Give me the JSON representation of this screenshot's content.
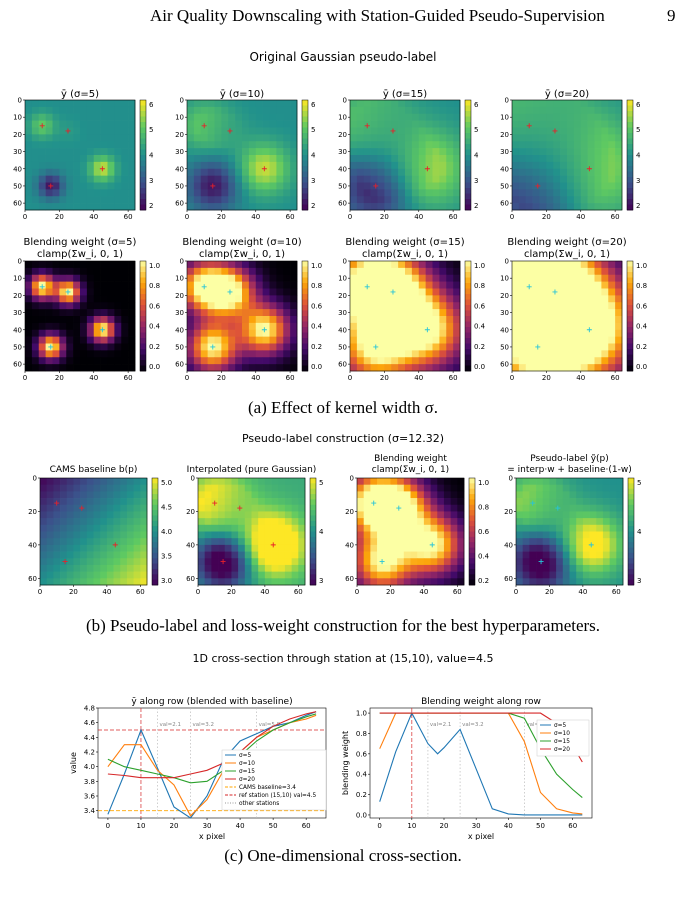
{
  "header": {
    "title": "Air Quality Downscaling with Station-Guided Pseudo-Supervision",
    "page": "9"
  },
  "colors": {
    "station_red": "#e8202a",
    "station_cyan": "#27c4d8"
  },
  "stations": [
    {
      "x": 10,
      "y": 15
    },
    {
      "x": 25,
      "y": 18
    },
    {
      "x": 45,
      "y": 40
    },
    {
      "x": 15,
      "y": 50
    }
  ],
  "figA": {
    "suptitle": "Original Gaussian pseudo-label",
    "caption": "(a) Effect of kernel width σ.",
    "top_titles": [
      "ȳ  (σ=5)",
      "ȳ  (σ=10)",
      "ȳ  (σ=15)",
      "ȳ  (σ=20)"
    ],
    "bottom_titles": [
      [
        "Blending weight  (σ=5)",
        "clamp(Σw_i, 0, 1)"
      ],
      [
        "Blending weight  (σ=10)",
        "clamp(Σw_i, 0, 1)"
      ],
      [
        "Blending weight  (σ=15)",
        "clamp(Σw_i, 0, 1)"
      ],
      [
        "Blending weight  (σ=20)",
        "clamp(Σw_i, 0, 1)"
      ]
    ],
    "sigmas": [
      5,
      10,
      15,
      20
    ],
    "yticks": [
      "0",
      "10",
      "20",
      "30",
      "40",
      "50",
      "60"
    ],
    "xticks": [
      "0",
      "20",
      "40",
      "60"
    ],
    "cbar_top": [
      "6",
      "5",
      "4",
      "3",
      "2"
    ],
    "cbar_bottom": [
      "1.0",
      "0.8",
      "0.6",
      "0.4",
      "0.2",
      "0.0"
    ]
  },
  "figB": {
    "suptitle": "Pseudo-label construction  (σ=12.32)",
    "caption": "(b) Pseudo-label and loss-weight construction for the best hyperparameters.",
    "titles": [
      [
        "CAMS baseline  b(p)"
      ],
      [
        "Interpolated (pure Gaussian)"
      ],
      [
        "Blending weight",
        "clamp(Σw_i, 0, 1)"
      ],
      [
        "Pseudo-label  ỹ(p)",
        "= interp·w + baseline·(1-w)"
      ]
    ],
    "yticks": [
      "0",
      "20",
      "40",
      "60"
    ],
    "xticks": [
      "0",
      "20",
      "40",
      "60"
    ],
    "cbars": [
      [
        "5.0",
        "4.5",
        "4.0",
        "3.5",
        "3.0"
      ],
      [
        "5",
        "4",
        "3"
      ],
      [
        "1.0",
        "0.8",
        "0.6",
        "0.4",
        "0.2"
      ],
      [
        "5",
        "4",
        "3"
      ]
    ]
  },
  "figC": {
    "suptitle": "1D cross-section through station at (15,10), value=4.5",
    "caption": "(c) One-dimensional cross-section.",
    "left": {
      "title": "ȳ along row (blended with baseline)",
      "xlabel": "x pixel",
      "ylabel": "value",
      "ylim": [
        3.3,
        4.8
      ],
      "yticks": [
        "3.4",
        "3.6",
        "3.8",
        "4.0",
        "4.2",
        "4.4",
        "4.6",
        "4.8"
      ],
      "xticks": [
        "0",
        "10",
        "20",
        "30",
        "40",
        "50",
        "60"
      ],
      "annotations": [
        "val=2.1",
        "val=3.2",
        "val=5.8"
      ],
      "legend": [
        "σ=5",
        "σ=10",
        "σ=15",
        "σ=20",
        "CAMS baseline=3.4",
        "ref station (15,10) val=4.5",
        "other stations"
      ]
    },
    "right": {
      "title": "Blending weight along row",
      "xlabel": "x pixel",
      "ylabel": "blending weight",
      "ylim": [
        0,
        1.05
      ],
      "yticks": [
        "0.0",
        "0.2",
        "0.4",
        "0.6",
        "0.8",
        "1.0"
      ],
      "xticks": [
        "0",
        "10",
        "20",
        "30",
        "40",
        "50",
        "60"
      ],
      "annotations": [
        "val=2.1",
        "val=3.2",
        "val=5.8"
      ],
      "legend": [
        "σ=5",
        "σ=10",
        "σ=15",
        "σ=20"
      ]
    }
  },
  "chart_data": [
    {
      "type": "line",
      "title": "ȳ along row (blended with baseline)",
      "xlabel": "x pixel",
      "ylabel": "value",
      "xlim": [
        -3,
        66
      ],
      "ylim": [
        3.3,
        4.8
      ],
      "x": [
        0,
        5,
        10,
        15,
        20,
        25,
        30,
        35,
        40,
        45,
        50,
        55,
        60,
        63
      ],
      "series": [
        {
          "name": "σ=5",
          "color": "#1f77b4",
          "values": [
            3.35,
            3.9,
            4.5,
            3.98,
            3.45,
            3.3,
            3.6,
            4.1,
            4.35,
            4.45,
            4.55,
            4.6,
            4.7,
            4.75
          ]
        },
        {
          "name": "σ=10",
          "color": "#ff7f0e",
          "values": [
            4.0,
            4.3,
            4.3,
            3.95,
            3.75,
            3.33,
            3.55,
            3.95,
            4.2,
            4.4,
            4.5,
            4.6,
            4.65,
            4.7
          ]
        },
        {
          "name": "σ=15",
          "color": "#2ca02c",
          "values": [
            4.1,
            4.0,
            3.95,
            3.9,
            3.85,
            3.78,
            3.8,
            3.95,
            4.15,
            4.35,
            4.5,
            4.6,
            4.68,
            4.72
          ]
        },
        {
          "name": "σ=20",
          "color": "#d62728",
          "values": [
            3.9,
            3.88,
            3.85,
            3.85,
            3.85,
            3.9,
            3.95,
            4.05,
            4.2,
            4.4,
            4.55,
            4.65,
            4.72,
            4.75
          ]
        }
      ],
      "hlines": [
        {
          "name": "CAMS baseline=3.4",
          "y": 3.4,
          "color": "#ffa500"
        },
        {
          "name": "ref station (15,10) val=4.5",
          "y": 4.5,
          "color": "#d62728"
        }
      ],
      "vlines": [
        {
          "x": 10,
          "color": "#d62728"
        },
        {
          "x": 15,
          "color": "#bbbbbb"
        },
        {
          "x": 25,
          "color": "#bbbbbb"
        },
        {
          "x": 45,
          "color": "#bbbbbb"
        }
      ]
    },
    {
      "type": "line",
      "title": "Blending weight along row",
      "xlabel": "x pixel",
      "ylabel": "blending weight",
      "xlim": [
        -3,
        66
      ],
      "ylim": [
        -0.03,
        1.05
      ],
      "x": [
        0,
        5,
        10,
        15,
        18,
        20,
        25,
        30,
        35,
        40,
        45,
        50,
        55,
        60,
        63
      ],
      "series": [
        {
          "name": "σ=5",
          "color": "#1f77b4",
          "values": [
            0.13,
            0.62,
            1.0,
            0.7,
            0.6,
            0.66,
            0.84,
            0.45,
            0.06,
            0.01,
            0.0,
            0.0,
            0.0,
            0.0,
            0.0
          ]
        },
        {
          "name": "σ=10",
          "color": "#ff7f0e",
          "values": [
            0.65,
            1.0,
            1.0,
            1.0,
            1.0,
            1.0,
            1.0,
            1.0,
            1.0,
            1.0,
            0.72,
            0.22,
            0.06,
            0.02,
            0.01
          ]
        },
        {
          "name": "σ=15",
          "color": "#2ca02c",
          "values": [
            1.0,
            1.0,
            1.0,
            1.0,
            1.0,
            1.0,
            1.0,
            1.0,
            1.0,
            1.0,
            0.95,
            0.65,
            0.4,
            0.25,
            0.17
          ]
        },
        {
          "name": "σ=20",
          "color": "#d62728",
          "values": [
            1.0,
            1.0,
            1.0,
            1.0,
            1.0,
            1.0,
            1.0,
            1.0,
            1.0,
            1.0,
            1.0,
            1.0,
            0.9,
            0.68,
            0.52
          ]
        }
      ],
      "vlines": [
        {
          "x": 10,
          "color": "#d62728"
        },
        {
          "x": 15,
          "color": "#bbbbbb"
        },
        {
          "x": 25,
          "color": "#bbbbbb"
        },
        {
          "x": 45,
          "color": "#bbbbbb"
        }
      ]
    }
  ]
}
